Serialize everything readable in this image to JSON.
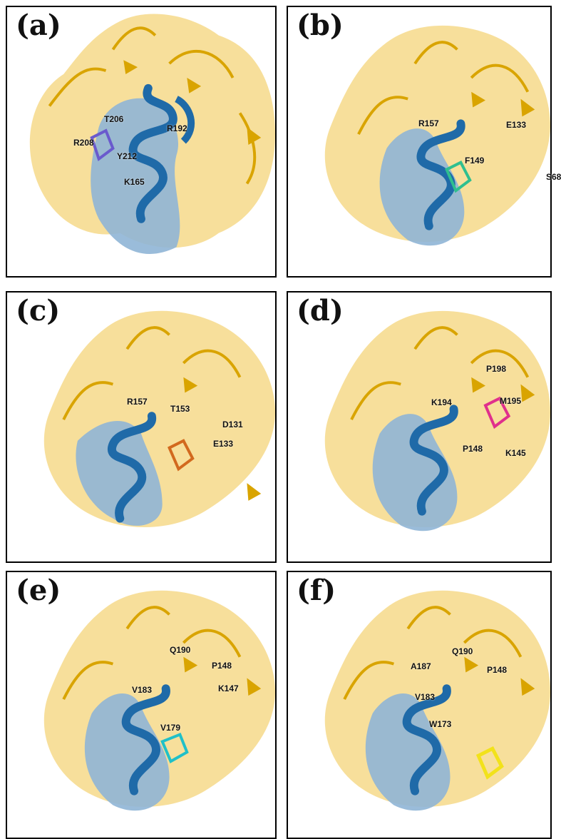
{
  "panels": [
    {
      "id": "a",
      "label": "(a)",
      "ligand_color": "#6a5acd",
      "residues": [
        "T206",
        "R192",
        "R208",
        "Y212",
        "K165"
      ]
    },
    {
      "id": "b",
      "label": "(b)",
      "ligand_color": "#2fbf8f",
      "residues": [
        "R157",
        "E133",
        "F149",
        "S68"
      ]
    },
    {
      "id": "c",
      "label": "(c)",
      "ligand_color": "#d2691e",
      "residues": [
        "R157",
        "T153",
        "D131",
        "E133"
      ]
    },
    {
      "id": "d",
      "label": "(d)",
      "ligand_color": "#e0308c",
      "residues": [
        "P198",
        "K194",
        "M195",
        "P148",
        "K145"
      ]
    },
    {
      "id": "e",
      "label": "(e)",
      "ligand_color": "#20c0c8",
      "residues": [
        "Q190",
        "P148",
        "K147",
        "V183",
        "V179"
      ]
    },
    {
      "id": "f",
      "label": "(f)",
      "ligand_color": "#f2e21a",
      "residues": [
        "Q190",
        "A187",
        "P148",
        "V183",
        "W173"
      ]
    }
  ],
  "colors": {
    "surface_yellow": "#f6d98a",
    "surface_blue": "#8fb5d6",
    "helix_blue": "#1f6aa8",
    "strand_gold": "#d9a400"
  }
}
